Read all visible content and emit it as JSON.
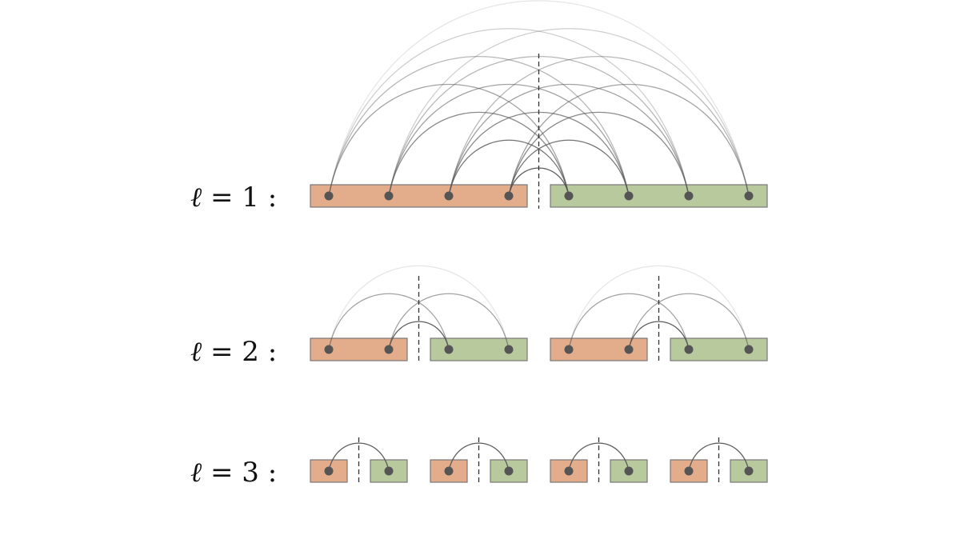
{
  "colors": {
    "left_block_fill": "#e3ad8c",
    "right_block_fill": "#b8c99e",
    "block_stroke": "#777777",
    "node": "#555555",
    "arc": "#555555",
    "divider": "#333333"
  },
  "levels": [
    {
      "symbol": "ℓ",
      "relation": "= 1 :",
      "level": 1,
      "groups": 1,
      "nodes_per_group": 8
    },
    {
      "symbol": "ℓ",
      "relation": "= 2 :",
      "level": 2,
      "groups": 2,
      "nodes_per_group": 4
    },
    {
      "symbol": "ℓ",
      "relation": "= 3 :",
      "level": 3,
      "groups": 4,
      "nodes_per_group": 2
    }
  ]
}
